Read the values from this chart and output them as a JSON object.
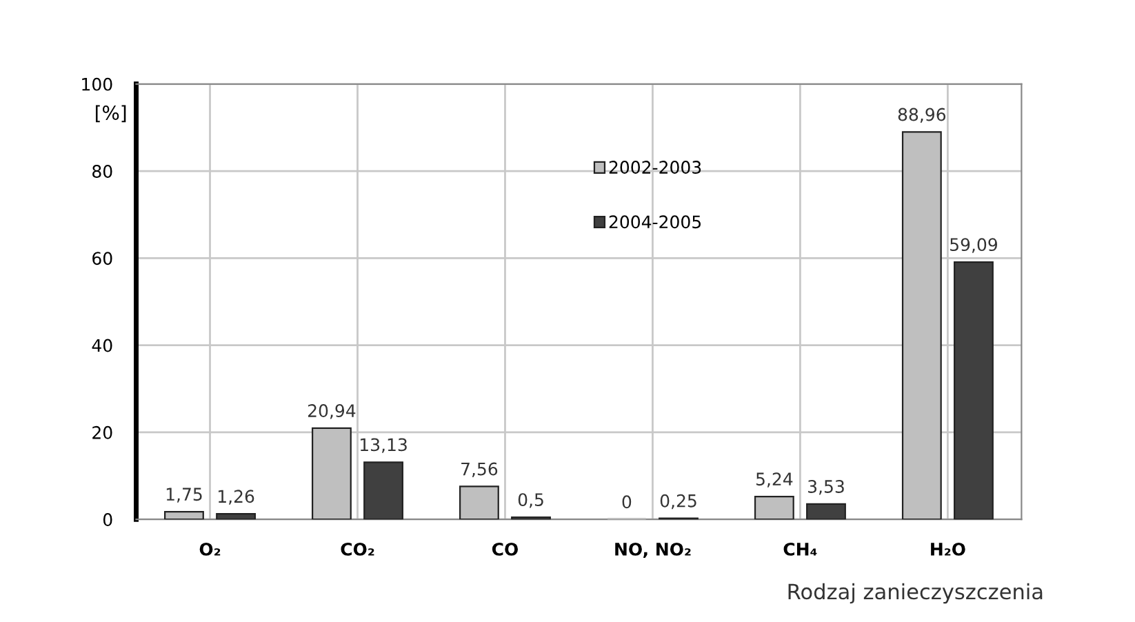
{
  "chart_data": {
    "type": "bar",
    "ylabel": "[%]",
    "xlabel": "Rodzaj zanieczyszczenia",
    "categories": [
      "O₂",
      "CO₂",
      "CO",
      "NO, NO₂",
      "CH₄",
      "H₂O"
    ],
    "series": [
      {
        "name": "2002-2003",
        "color": "#bfbfbf",
        "values": [
          1.75,
          20.94,
          7.56,
          0,
          5.24,
          88.96
        ],
        "value_labels": [
          "1,75",
          "20,94",
          "7,56",
          "0",
          "5,24",
          "88,96"
        ]
      },
      {
        "name": "2004-2005",
        "color": "#404040",
        "values": [
          1.26,
          13.13,
          0.5,
          0.25,
          3.53,
          59.09
        ],
        "value_labels": [
          "1,26",
          "13,13",
          "0,5",
          "0,25",
          "3,53",
          "59,09"
        ]
      }
    ],
    "ylim": [
      0,
      100
    ],
    "yticks": [
      0,
      20,
      40,
      60,
      80,
      100
    ],
    "grid": true,
    "legend": "top"
  }
}
